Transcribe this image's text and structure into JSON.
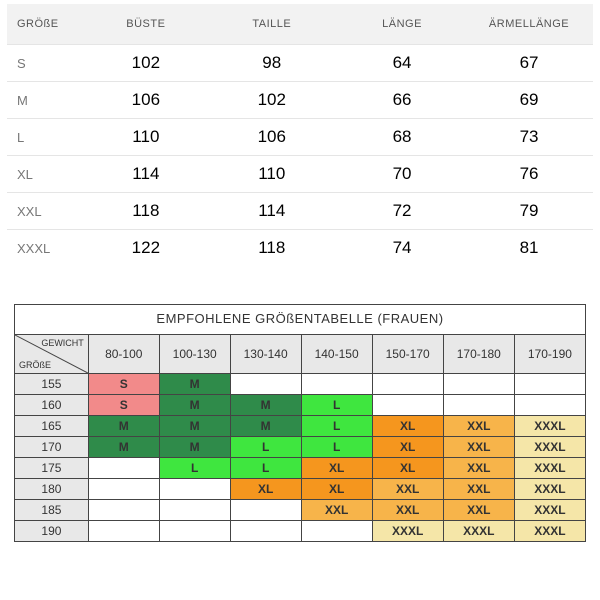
{
  "measure_table": {
    "columns": [
      "GRÖßE",
      "BÜSTE",
      "TAILLE",
      "LÄNGE",
      "ÄRMELLÄNGE"
    ],
    "rows": [
      [
        "S",
        "102",
        "98",
        "64",
        "67"
      ],
      [
        "M",
        "106",
        "102",
        "66",
        "69"
      ],
      [
        "L",
        "110",
        "106",
        "68",
        "73"
      ],
      [
        "XL",
        "114",
        "110",
        "70",
        "76"
      ],
      [
        "XXL",
        "118",
        "114",
        "72",
        "79"
      ],
      [
        "XXXL",
        "122",
        "118",
        "74",
        "81"
      ]
    ],
    "header_bg": "#f2f2f2",
    "border_color": "#e5e5e5"
  },
  "recommend_table": {
    "title": "EMPFOHLENE GRÖßENTABELLE (FRAUEN)",
    "diag": {
      "top_right": "GEWICHT",
      "bottom_left": "GRÖßE"
    },
    "weight_headers": [
      "80-100",
      "100-130",
      "130-140",
      "140-150",
      "150-170",
      "170-180",
      "170-190"
    ],
    "height_headers": [
      "155",
      "160",
      "165",
      "170",
      "175",
      "180",
      "185",
      "190"
    ],
    "cells": [
      [
        {
          "v": "S",
          "c": "pink"
        },
        {
          "v": "M",
          "c": "dgreen"
        },
        {
          "v": "",
          "c": ""
        },
        {
          "v": "",
          "c": ""
        },
        {
          "v": "",
          "c": ""
        },
        {
          "v": "",
          "c": ""
        },
        {
          "v": "",
          "c": ""
        }
      ],
      [
        {
          "v": "S",
          "c": "pink"
        },
        {
          "v": "M",
          "c": "dgreen"
        },
        {
          "v": "M",
          "c": "dgreen"
        },
        {
          "v": "L",
          "c": "lgreen"
        },
        {
          "v": "",
          "c": ""
        },
        {
          "v": "",
          "c": ""
        },
        {
          "v": "",
          "c": ""
        }
      ],
      [
        {
          "v": "M",
          "c": "dgreen"
        },
        {
          "v": "M",
          "c": "dgreen"
        },
        {
          "v": "M",
          "c": "dgreen"
        },
        {
          "v": "L",
          "c": "lgreen"
        },
        {
          "v": "XL",
          "c": "orange"
        },
        {
          "v": "XXL",
          "c": "lorange"
        },
        {
          "v": "XXXL",
          "c": "cream"
        }
      ],
      [
        {
          "v": "M",
          "c": "dgreen"
        },
        {
          "v": "M",
          "c": "dgreen"
        },
        {
          "v": "L",
          "c": "lgreen"
        },
        {
          "v": "L",
          "c": "lgreen"
        },
        {
          "v": "XL",
          "c": "orange"
        },
        {
          "v": "XXL",
          "c": "lorange"
        },
        {
          "v": "XXXL",
          "c": "cream"
        }
      ],
      [
        {
          "v": "",
          "c": ""
        },
        {
          "v": "L",
          "c": "lgreen"
        },
        {
          "v": "L",
          "c": "lgreen"
        },
        {
          "v": "XL",
          "c": "orange"
        },
        {
          "v": "XL",
          "c": "orange"
        },
        {
          "v": "XXL",
          "c": "lorange"
        },
        {
          "v": "XXXL",
          "c": "cream"
        }
      ],
      [
        {
          "v": "",
          "c": ""
        },
        {
          "v": "",
          "c": ""
        },
        {
          "v": "XL",
          "c": "orange"
        },
        {
          "v": "XL",
          "c": "orange"
        },
        {
          "v": "XXL",
          "c": "lorange"
        },
        {
          "v": "XXL",
          "c": "lorange"
        },
        {
          "v": "XXXL",
          "c": "cream"
        }
      ],
      [
        {
          "v": "",
          "c": ""
        },
        {
          "v": "",
          "c": ""
        },
        {
          "v": "",
          "c": ""
        },
        {
          "v": "XXL",
          "c": "lorange"
        },
        {
          "v": "XXL",
          "c": "lorange"
        },
        {
          "v": "XXL",
          "c": "lorange"
        },
        {
          "v": "XXXL",
          "c": "cream"
        }
      ],
      [
        {
          "v": "",
          "c": ""
        },
        {
          "v": "",
          "c": ""
        },
        {
          "v": "",
          "c": ""
        },
        {
          "v": "",
          "c": ""
        },
        {
          "v": "XXXL",
          "c": "cream"
        },
        {
          "v": "XXXL",
          "c": "cream"
        },
        {
          "v": "XXXL",
          "c": "cream"
        }
      ]
    ],
    "colors": {
      "pink": "#f28a8a",
      "dgreen": "#2f8b4a",
      "lgreen": "#3fe63f",
      "orange": "#f5961e",
      "lorange": "#f7b44a",
      "cream": "#f5e6a8",
      "header_bg": "#e8e8e8",
      "border": "#444444"
    }
  }
}
